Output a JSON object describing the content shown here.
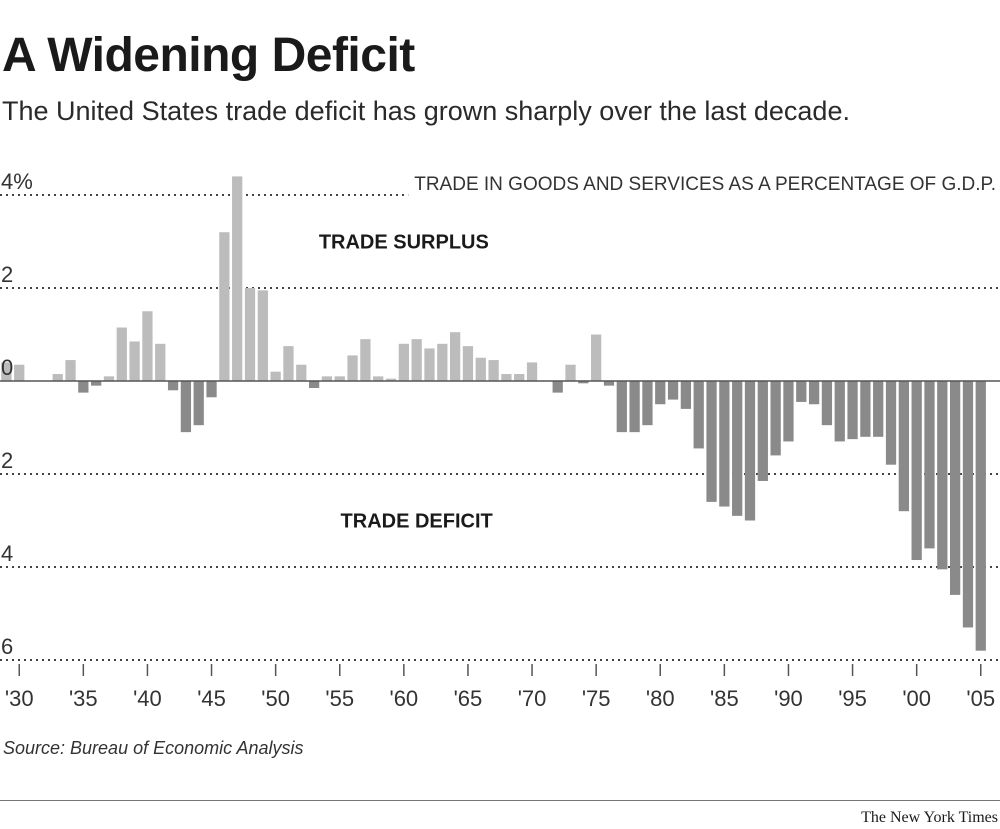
{
  "chart_data": {
    "type": "bar",
    "title": "A Widening Deficit",
    "subtitle": "The United States trade deficit has grown sharply over the last decade.",
    "chart_label": "TRADE IN GOODS AND SERVICES AS A PERCENTAGE OF G.D.P.",
    "annotations": [
      {
        "text": "TRADE SURPLUS",
        "x": 1960,
        "y": 3
      },
      {
        "text": "TRADE DEFICIT",
        "x": 1961,
        "y": -3
      }
    ],
    "y_tick_labels": [
      "4%",
      "2",
      "0",
      "2",
      "4",
      "6"
    ],
    "y_tick_values": [
      4,
      2,
      0,
      -2,
      -4,
      -6
    ],
    "x_tick_labels": [
      "'30",
      "'35",
      "'40",
      "'45",
      "'50",
      "'55",
      "'60",
      "'65",
      "'70",
      "'75",
      "'80",
      "'85",
      "'90",
      "'95",
      "'00",
      "'05"
    ],
    "x_tick_values": [
      1930,
      1935,
      1940,
      1945,
      1950,
      1955,
      1960,
      1965,
      1970,
      1975,
      1980,
      1985,
      1990,
      1995,
      2000,
      2005
    ],
    "ylim": [
      -6,
      4.4
    ],
    "xlim": [
      1928.5,
      2006.5
    ],
    "grid": "horizontal dotted",
    "colors": {
      "surplus": "#bcbcbc",
      "deficit": "#8a8a8a",
      "text": "#1a1a1a",
      "grid": "#444444"
    },
    "x": [
      1929,
      1930,
      1931,
      1932,
      1933,
      1934,
      1935,
      1936,
      1937,
      1938,
      1939,
      1940,
      1941,
      1942,
      1943,
      1944,
      1945,
      1946,
      1947,
      1948,
      1949,
      1950,
      1951,
      1952,
      1953,
      1954,
      1955,
      1956,
      1957,
      1958,
      1959,
      1960,
      1961,
      1962,
      1963,
      1964,
      1965,
      1966,
      1967,
      1968,
      1969,
      1970,
      1971,
      1972,
      1973,
      1974,
      1975,
      1976,
      1977,
      1978,
      1979,
      1980,
      1981,
      1982,
      1983,
      1984,
      1985,
      1986,
      1987,
      1988,
      1989,
      1990,
      1991,
      1992,
      1993,
      1994,
      1995,
      1996,
      1997,
      1998,
      1999,
      2000,
      2001,
      2002,
      2003,
      2004,
      2005
    ],
    "values": [
      0.4,
      0.35,
      0.0,
      0.0,
      0.15,
      0.45,
      -0.25,
      -0.1,
      0.1,
      1.15,
      0.85,
      1.5,
      0.8,
      -0.2,
      -1.1,
      -0.95,
      -0.35,
      3.2,
      4.4,
      2.0,
      1.95,
      0.2,
      0.75,
      0.35,
      -0.15,
      0.1,
      0.1,
      0.55,
      0.9,
      0.1,
      0.05,
      0.8,
      0.9,
      0.7,
      0.8,
      1.05,
      0.75,
      0.5,
      0.45,
      0.15,
      0.15,
      0.4,
      0.0,
      -0.25,
      0.35,
      -0.05,
      1.0,
      -0.1,
      -1.1,
      -1.1,
      -0.95,
      -0.5,
      -0.4,
      -0.6,
      -1.45,
      -2.6,
      -2.7,
      -2.9,
      -3.0,
      -2.15,
      -1.6,
      -1.3,
      -0.45,
      -0.5,
      -0.95,
      -1.3,
      -1.25,
      -1.2,
      -1.2,
      -1.8,
      -2.8,
      -3.85,
      -3.6,
      -4.05,
      -4.6,
      -5.3,
      -5.8
    ]
  },
  "source": "Source: Bureau of Economic Analysis",
  "credit": "The New York Times"
}
